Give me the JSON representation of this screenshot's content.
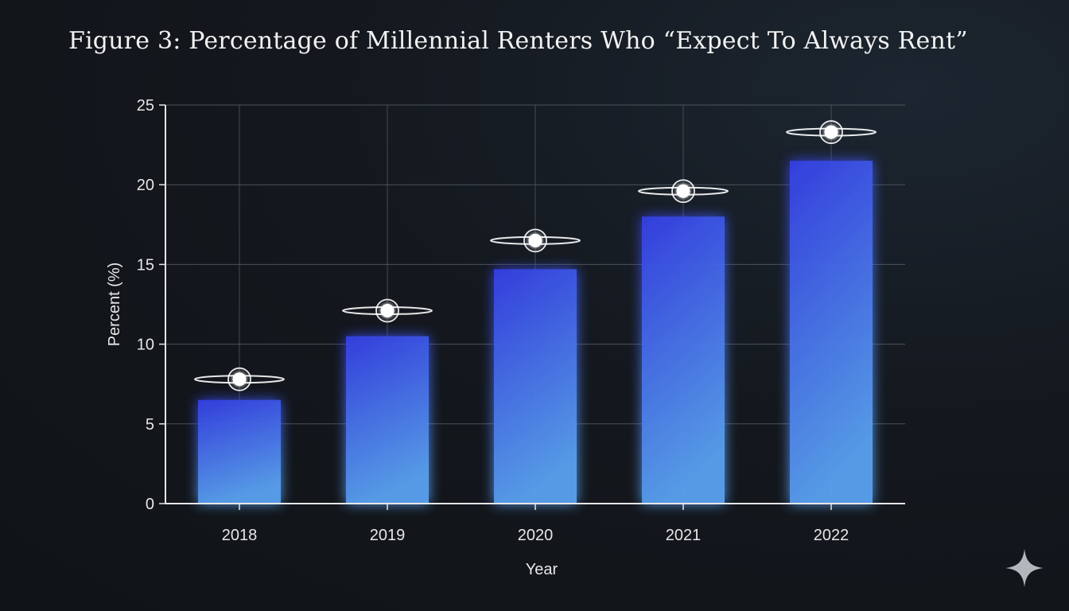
{
  "title": "Figure 3: Percentage of Millennial Renters Who “Expect To Always Rent”",
  "colors": {
    "bar_top": "#3540e6",
    "bar_bottom": "#5aa2f0",
    "grid": "#5a6068",
    "marker": "#ffffff",
    "text": "#e6e6e6"
  },
  "chart_data": {
    "type": "bar",
    "categories": [
      "2018",
      "2019",
      "2020",
      "2021",
      "2022"
    ],
    "series": [
      {
        "values": [
          6.5,
          10.5,
          14.7,
          18.0,
          21.5
        ]
      },
      {
        "values": [
          7.8,
          12.1,
          16.5,
          19.6,
          23.3
        ]
      }
    ],
    "xlabel": "Year",
    "ylabel": "Percent (%)",
    "ylim": [
      0,
      25
    ],
    "yticks": [
      0,
      5,
      10,
      15,
      20,
      25
    ],
    "grid": true
  },
  "watermark_icon": "sparkle-icon"
}
